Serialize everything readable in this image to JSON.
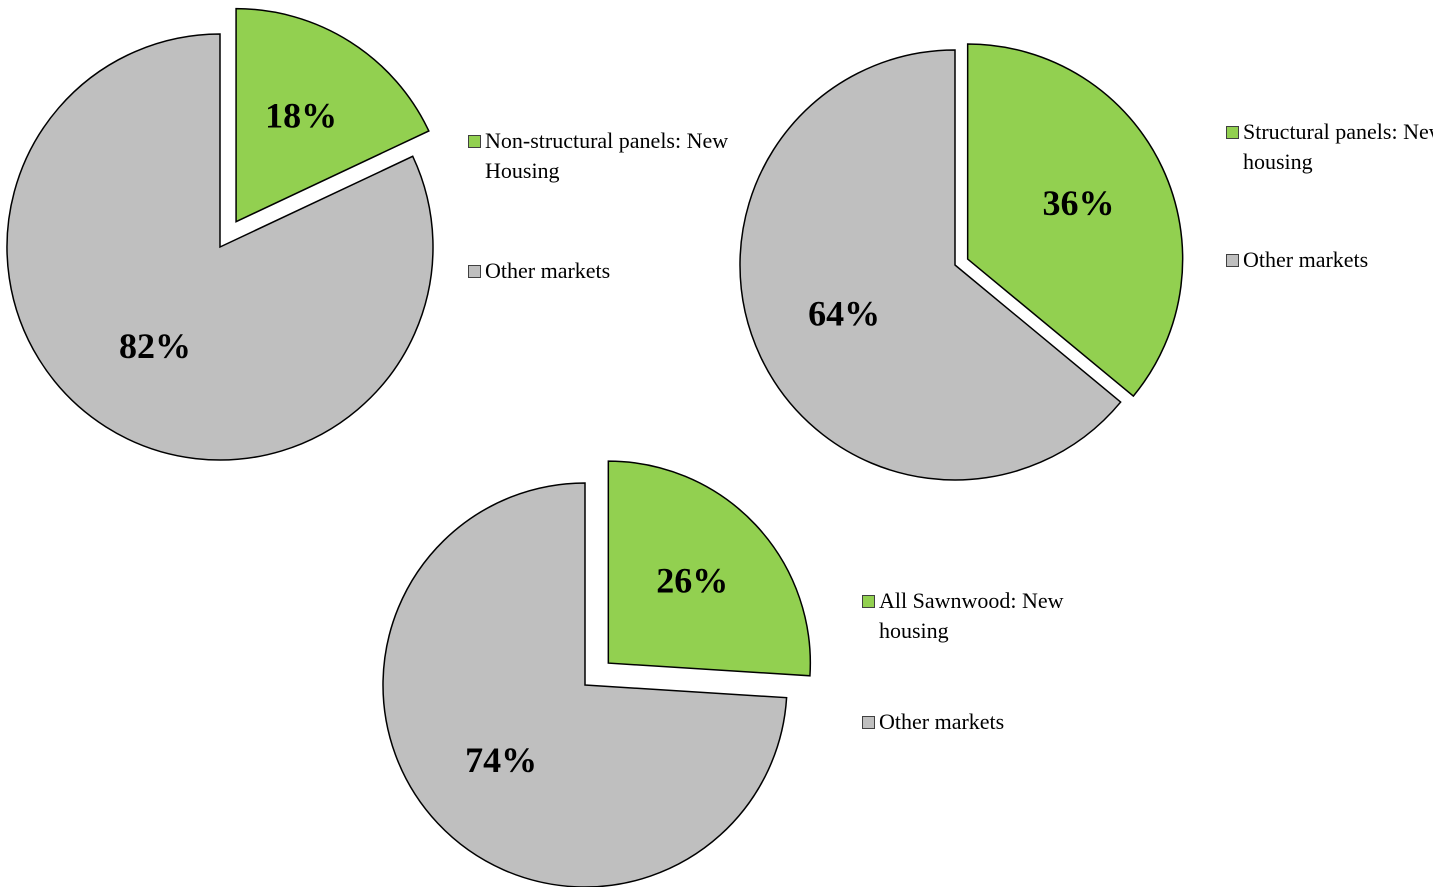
{
  "chart_data": [
    {
      "type": "pie",
      "categories": [
        "Non-structural panels: New Housing",
        "Other markets"
      ],
      "values": [
        18,
        82
      ],
      "value_labels": [
        "18%",
        "82%"
      ],
      "colors": [
        "#92d050",
        "#bfbfbf"
      ],
      "exploded": [
        true,
        false
      ]
    },
    {
      "type": "pie",
      "categories": [
        "Structural panels: New housing",
        "Other markets"
      ],
      "values": [
        36,
        64
      ],
      "value_labels": [
        "36%",
        "64%"
      ],
      "colors": [
        "#92d050",
        "#bfbfbf"
      ],
      "exploded": [
        true,
        false
      ]
    },
    {
      "type": "pie",
      "categories": [
        "All Sawnwood: New housing",
        "Other markets"
      ],
      "values": [
        26,
        74
      ],
      "value_labels": [
        "26%",
        "74%"
      ],
      "colors": [
        "#92d050",
        "#bfbfbf"
      ],
      "exploded": [
        true,
        false
      ]
    }
  ]
}
